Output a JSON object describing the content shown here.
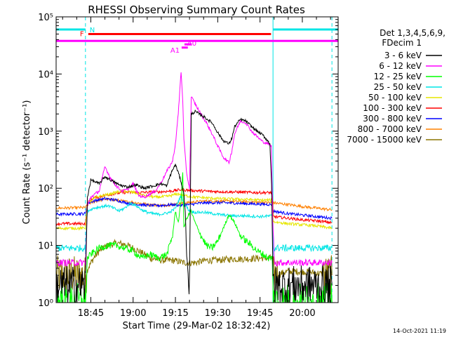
{
  "chart_data": {
    "type": "line",
    "title": "RHESSI Observing Summary Count Rates",
    "xlabel": "Start Time (29-Mar-02 18:32:42)",
    "ylabel": "Count Rate (s⁻¹ detector⁻¹)",
    "yscale": "log",
    "ylim": [
      1,
      100000
    ],
    "xlim_minutes_of_day": [
      1112.7,
      1212.7
    ],
    "x_ticks": [
      {
        "label": "18:45",
        "t": 1125
      },
      {
        "label": "19:00",
        "t": 1140
      },
      {
        "label": "19:15",
        "t": 1155
      },
      {
        "label": "19:30",
        "t": 1170
      },
      {
        "label": "19:45",
        "t": 1185
      },
      {
        "label": "20:00",
        "t": 1200
      }
    ],
    "y_ticks": [
      {
        "label": "10⁰",
        "v": 1
      },
      {
        "label": "10¹",
        "v": 10
      },
      {
        "label": "10²",
        "v": 100
      },
      {
        "label": "10³",
        "v": 1000
      },
      {
        "label": "10⁴",
        "v": 10000
      },
      {
        "label": "10⁵",
        "v": 100000
      }
    ],
    "legend": {
      "placement": "right",
      "header": [
        "Det 1,3,4,5,6,9,",
        "FDecim 1"
      ]
    },
    "series": [
      {
        "name": "3 - 6 keV",
        "color": "#000000",
        "points": [
          [
            1112.7,
            2
          ],
          [
            1123.1,
            2
          ],
          [
            1123.8,
            70
          ],
          [
            1125,
            140
          ],
          [
            1128,
            120
          ],
          [
            1130,
            160
          ],
          [
            1132,
            140
          ],
          [
            1135,
            115
          ],
          [
            1138,
            105
          ],
          [
            1141,
            115
          ],
          [
            1144,
            100
          ],
          [
            1147,
            110
          ],
          [
            1150,
            120
          ],
          [
            1152,
            110
          ],
          [
            1153,
            160
          ],
          [
            1154,
            210
          ],
          [
            1155,
            260
          ],
          [
            1156,
            190
          ],
          [
            1157,
            130
          ],
          [
            1158,
            80
          ],
          [
            1158.5,
            40
          ],
          [
            1159,
            6
          ],
          [
            1160,
            2
          ],
          [
            1160.6,
            2000
          ],
          [
            1162,
            2200
          ],
          [
            1165,
            1800
          ],
          [
            1168,
            1400
          ],
          [
            1170,
            950
          ],
          [
            1172,
            680
          ],
          [
            1174,
            600
          ],
          [
            1175,
            750
          ],
          [
            1176,
            1200
          ],
          [
            1178,
            1600
          ],
          [
            1180,
            1500
          ],
          [
            1182,
            1200
          ],
          [
            1184,
            1000
          ],
          [
            1186,
            850
          ],
          [
            1187.5,
            700
          ],
          [
            1188.5,
            600
          ],
          [
            1189.1,
            120
          ],
          [
            1189.6,
            2
          ],
          [
            1210.5,
            2
          ]
        ]
      },
      {
        "name": "6 - 12 keV",
        "color": "#ff00ff",
        "points": [
          [
            1112.7,
            5
          ],
          [
            1123.1,
            5
          ],
          [
            1123.8,
            50
          ],
          [
            1125,
            70
          ],
          [
            1128,
            90
          ],
          [
            1130,
            240
          ],
          [
            1132,
            150
          ],
          [
            1134,
            110
          ],
          [
            1136,
            90
          ],
          [
            1138,
            95
          ],
          [
            1140,
            120
          ],
          [
            1142,
            75
          ],
          [
            1144,
            70
          ],
          [
            1146,
            80
          ],
          [
            1148,
            90
          ],
          [
            1150,
            130
          ],
          [
            1152,
            200
          ],
          [
            1154,
            300
          ],
          [
            1155,
            600
          ],
          [
            1156,
            2000
          ],
          [
            1157,
            11000
          ],
          [
            1157.6,
            3500
          ],
          [
            1158,
            700
          ],
          [
            1159,
            180
          ],
          [
            1160,
            100
          ],
          [
            1160.6,
            4000
          ],
          [
            1162,
            3000
          ],
          [
            1164,
            2000
          ],
          [
            1166,
            1400
          ],
          [
            1168,
            900
          ],
          [
            1170,
            550
          ],
          [
            1172,
            350
          ],
          [
            1174,
            280
          ],
          [
            1175,
            450
          ],
          [
            1176,
            900
          ],
          [
            1178,
            1500
          ],
          [
            1180,
            1400
          ],
          [
            1182,
            1000
          ],
          [
            1184,
            800
          ],
          [
            1186,
            650
          ],
          [
            1188,
            600
          ],
          [
            1189,
            550
          ],
          [
            1189.5,
            30
          ],
          [
            1190.1,
            5
          ],
          [
            1210.5,
            5
          ]
        ]
      },
      {
        "name": "12 - 25 keV",
        "color": "#00ff00",
        "points": [
          [
            1112.7,
            1
          ],
          [
            1123.1,
            1
          ],
          [
            1123.8,
            6
          ],
          [
            1125,
            7
          ],
          [
            1128,
            9
          ],
          [
            1131,
            10
          ],
          [
            1134,
            10
          ],
          [
            1137,
            9
          ],
          [
            1140,
            8
          ],
          [
            1143,
            6
          ],
          [
            1146,
            7
          ],
          [
            1149,
            6
          ],
          [
            1152,
            7
          ],
          [
            1154,
            15
          ],
          [
            1155,
            40
          ],
          [
            1156,
            25
          ],
          [
            1157,
            60
          ],
          [
            1157.6,
            200
          ],
          [
            1158,
            20
          ],
          [
            1159,
            30
          ],
          [
            1160.5,
            40
          ],
          [
            1162,
            25
          ],
          [
            1164,
            15
          ],
          [
            1166,
            10
          ],
          [
            1168,
            9
          ],
          [
            1170,
            12
          ],
          [
            1172,
            20
          ],
          [
            1174,
            35
          ],
          [
            1176,
            25
          ],
          [
            1178,
            15
          ],
          [
            1180,
            12
          ],
          [
            1182,
            10
          ],
          [
            1184,
            8
          ],
          [
            1186,
            7
          ],
          [
            1188,
            6
          ],
          [
            1189.3,
            6
          ],
          [
            1189.7,
            1
          ],
          [
            1210.5,
            1
          ]
        ]
      },
      {
        "name": "25 - 50 keV",
        "color": "#00e5e5",
        "points": [
          [
            1112.7,
            9
          ],
          [
            1123.1,
            9
          ],
          [
            1123.8,
            40
          ],
          [
            1126,
            45
          ],
          [
            1129,
            48
          ],
          [
            1131,
            50
          ],
          [
            1133,
            45
          ],
          [
            1135,
            40
          ],
          [
            1137,
            45
          ],
          [
            1139,
            55
          ],
          [
            1141,
            50
          ],
          [
            1143,
            42
          ],
          [
            1145,
            38
          ],
          [
            1147,
            36
          ],
          [
            1149,
            35
          ],
          [
            1151,
            36
          ],
          [
            1153,
            38
          ],
          [
            1155,
            45
          ],
          [
            1157,
            75
          ],
          [
            1158,
            55
          ],
          [
            1160,
            40
          ],
          [
            1162,
            38
          ],
          [
            1165,
            38
          ],
          [
            1170,
            35
          ],
          [
            1175,
            33
          ],
          [
            1180,
            33
          ],
          [
            1185,
            32
          ],
          [
            1189.3,
            33
          ],
          [
            1189.7,
            9
          ],
          [
            1210.5,
            9
          ]
        ]
      },
      {
        "name": "50 - 100 keV",
        "color": "#e6e600",
        "points": [
          [
            1112.7,
            20
          ],
          [
            1123.1,
            20
          ],
          [
            1123.8,
            55
          ],
          [
            1127,
            70
          ],
          [
            1132,
            80
          ],
          [
            1136,
            90
          ],
          [
            1140,
            85
          ],
          [
            1144,
            75
          ],
          [
            1148,
            70
          ],
          [
            1152,
            72
          ],
          [
            1156,
            80
          ],
          [
            1158,
            75
          ],
          [
            1162,
            70
          ],
          [
            1166,
            68
          ],
          [
            1170,
            66
          ],
          [
            1175,
            65
          ],
          [
            1180,
            64
          ],
          [
            1185,
            62
          ],
          [
            1189.3,
            62
          ],
          [
            1189.7,
            26
          ],
          [
            1195,
            24
          ],
          [
            1200,
            23
          ],
          [
            1205,
            22
          ],
          [
            1210.5,
            20
          ]
        ]
      },
      {
        "name": "100 - 300 keV",
        "color": "#ff0000",
        "points": [
          [
            1112.7,
            24
          ],
          [
            1123.1,
            24
          ],
          [
            1123.8,
            55
          ],
          [
            1126,
            68
          ],
          [
            1130,
            75
          ],
          [
            1134,
            82
          ],
          [
            1138,
            85
          ],
          [
            1142,
            84
          ],
          [
            1146,
            86
          ],
          [
            1150,
            87
          ],
          [
            1154,
            90
          ],
          [
            1157,
            95
          ],
          [
            1160,
            92
          ],
          [
            1164,
            90
          ],
          [
            1168,
            88
          ],
          [
            1172,
            87
          ],
          [
            1176,
            86
          ],
          [
            1180,
            85
          ],
          [
            1184,
            84
          ],
          [
            1187,
            84
          ],
          [
            1189.3,
            84
          ],
          [
            1189.7,
            32
          ],
          [
            1195,
            30
          ],
          [
            1200,
            28
          ],
          [
            1205,
            27
          ],
          [
            1210.5,
            25
          ]
        ]
      },
      {
        "name": "300 - 800 keV",
        "color": "#0000ff",
        "points": [
          [
            1112.7,
            35
          ],
          [
            1123.1,
            36
          ],
          [
            1123.8,
            55
          ],
          [
            1127,
            62
          ],
          [
            1130,
            66
          ],
          [
            1134,
            62
          ],
          [
            1138,
            55
          ],
          [
            1142,
            52
          ],
          [
            1146,
            50
          ],
          [
            1150,
            50
          ],
          [
            1154,
            52
          ],
          [
            1157,
            50
          ],
          [
            1160,
            52
          ],
          [
            1164,
            55
          ],
          [
            1168,
            56
          ],
          [
            1172,
            56
          ],
          [
            1176,
            55
          ],
          [
            1180,
            54
          ],
          [
            1185,
            53
          ],
          [
            1189.3,
            52
          ],
          [
            1189.7,
            40
          ],
          [
            1195,
            36
          ],
          [
            1200,
            34
          ],
          [
            1205,
            32
          ],
          [
            1210.5,
            30
          ]
        ]
      },
      {
        "name": "800 - 7000 keV",
        "color": "#ff8000",
        "points": [
          [
            1112.7,
            45
          ],
          [
            1123.1,
            46
          ],
          [
            1124.5,
            55
          ],
          [
            1127,
            60
          ],
          [
            1130,
            65
          ],
          [
            1134,
            62
          ],
          [
            1138,
            58
          ],
          [
            1142,
            55
          ],
          [
            1146,
            52
          ],
          [
            1150,
            50
          ],
          [
            1154,
            52
          ],
          [
            1158,
            55
          ],
          [
            1162,
            58
          ],
          [
            1166,
            60
          ],
          [
            1170,
            60
          ],
          [
            1175,
            59
          ],
          [
            1180,
            58
          ],
          [
            1185,
            57
          ],
          [
            1189.3,
            56
          ],
          [
            1195,
            52
          ],
          [
            1200,
            48
          ],
          [
            1205,
            45
          ],
          [
            1210.5,
            42
          ]
        ]
      },
      {
        "name": "7000 - 15000 keV",
        "color": "#8b7500",
        "points": [
          [
            1112.7,
            3
          ],
          [
            1123.1,
            3
          ],
          [
            1124,
            4
          ],
          [
            1126,
            6
          ],
          [
            1128,
            8
          ],
          [
            1131,
            10
          ],
          [
            1134,
            11
          ],
          [
            1137,
            10.5
          ],
          [
            1140,
            9
          ],
          [
            1143,
            7.5
          ],
          [
            1146,
            6
          ],
          [
            1150,
            5.5
          ],
          [
            1154,
            5.5
          ],
          [
            1158,
            5
          ],
          [
            1162,
            5
          ],
          [
            1166,
            5.5
          ],
          [
            1170,
            5.5
          ],
          [
            1175,
            5.8
          ],
          [
            1180,
            5.8
          ],
          [
            1185,
            6
          ],
          [
            1189.3,
            6
          ],
          [
            1189.7,
            3
          ],
          [
            1195,
            3.5
          ],
          [
            1200,
            3.5
          ],
          [
            1205,
            3.3
          ],
          [
            1210.5,
            3
          ]
        ]
      }
    ],
    "flags": [
      {
        "label": "N",
        "color": "#00e5e5",
        "y": 60000,
        "segments": [
          [
            1112.7,
            1123.1
          ],
          [
            1189.6,
            1212.7
          ]
        ]
      },
      {
        "label": "F",
        "color": "#ff0000",
        "y": 50000,
        "segments": [
          [
            1124.1,
            1188.9
          ]
        ]
      },
      {
        "label": "",
        "color": "#ff00ff",
        "y": 38000,
        "segments": [
          [
            1112.7,
            1212.7
          ]
        ]
      },
      {
        "label": "A0",
        "color": "#ff00ff",
        "y": 33000,
        "segments": [
          [
            1158.2,
            1160.8
          ]
        ]
      },
      {
        "label": "A1",
        "color": "#ff00ff",
        "y": 29000,
        "segments": [
          [
            1157.2,
            1159.4
          ]
        ]
      }
    ],
    "vlines": [
      {
        "color": "#00e5e5",
        "style": "dashed",
        "t": 1123.1
      },
      {
        "color": "#00e5e5",
        "style": "solid",
        "t": 1189.6
      },
      {
        "color": "#00e5e5",
        "style": "dashed",
        "t": 1210.5
      }
    ],
    "grid": false
  },
  "footer": {
    "date_stamp": "14-Oct-2021 11:19"
  }
}
